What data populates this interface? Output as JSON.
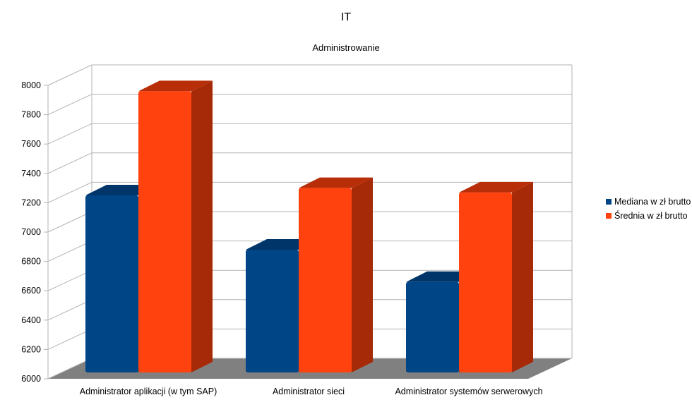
{
  "chart_data": {
    "type": "bar",
    "title": "IT",
    "subtitle": "Administrowanie",
    "categories": [
      "Administrator aplikacji (w tym SAP)",
      "Administrator sieci",
      "Administrator systemów serwerowych"
    ],
    "series": [
      {
        "name": "Mediana w zł brutto",
        "values": [
          7250,
          6880,
          6660
        ],
        "color": "#004586",
        "side_color": "#002f5e",
        "top_color": "#00356a"
      },
      {
        "name": "Średnia w zł brutto",
        "values": [
          7960,
          7300,
          7270
        ],
        "color": "#ff420e",
        "side_color": "#a62a07",
        "top_color": "#b82e08"
      }
    ],
    "ylim": [
      6000,
      8000
    ],
    "yticks": [
      "6000",
      "6200",
      "6400",
      "6600",
      "6800",
      "7000",
      "7200",
      "7400",
      "7600",
      "7800",
      "8000"
    ],
    "grid": true,
    "legend_position": "right"
  }
}
